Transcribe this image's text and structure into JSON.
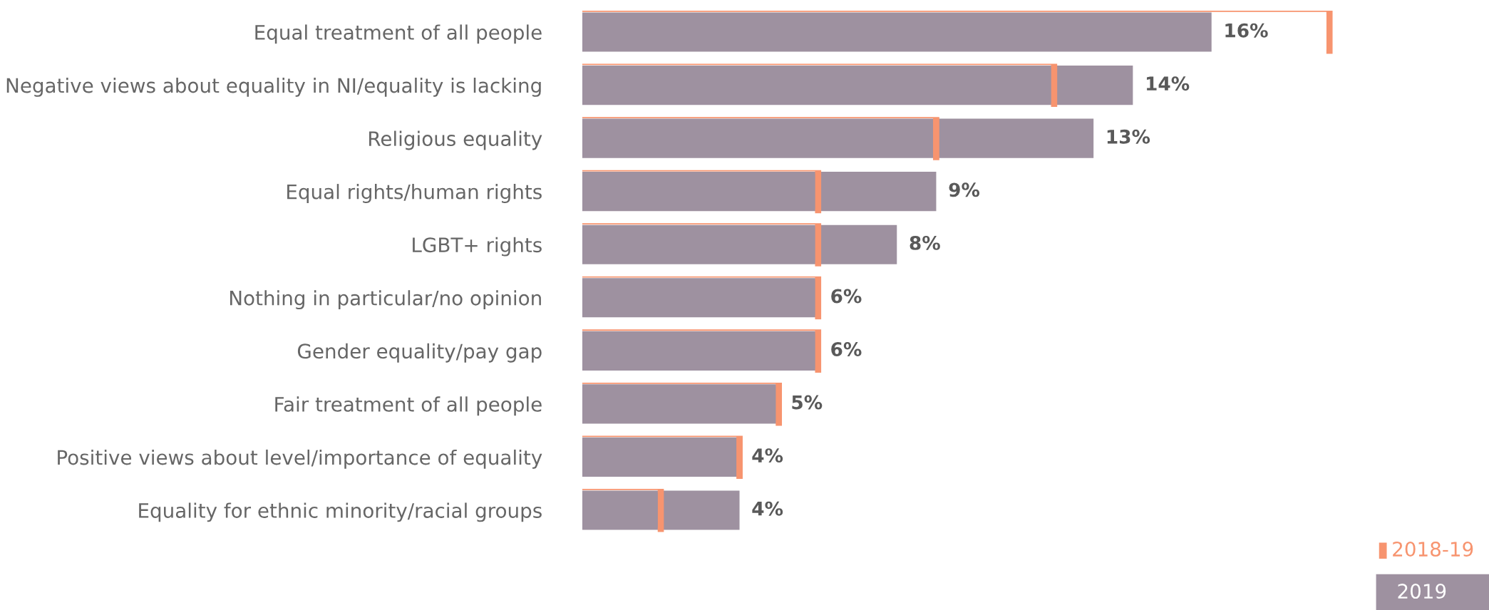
{
  "chart_data": {
    "type": "bar",
    "orientation": "horizontal",
    "categories": [
      "Equal treatment of all people",
      "Negative views about equality in NI/equality is lacking",
      "Religious equality",
      "Equal rights/human rights",
      "LGBT+ rights",
      "Nothing in particular/no opinion",
      "Gender equality/pay gap",
      "Fair treatment of all people",
      "Positive views about level/importance of equality",
      "Equality for ethnic minority/racial groups"
    ],
    "series": [
      {
        "name": "2019",
        "color": "#9e91a0",
        "values": [
          16,
          14,
          13,
          9,
          8,
          6,
          6,
          5,
          4,
          4
        ],
        "value_labels": [
          "16%",
          "14%",
          "13%",
          "9%",
          "8%",
          "6%",
          "6%",
          "5%",
          "4%",
          "4%"
        ]
      },
      {
        "name": "2018-19",
        "type": "bar",
        "color": "#f7946f",
        "values": [
          19,
          12,
          9,
          6,
          6,
          6,
          6,
          5,
          4,
          2
        ]
      }
    ],
    "tick_labels": "y",
    "legend": "bottom right",
    "grid": false
  }
}
